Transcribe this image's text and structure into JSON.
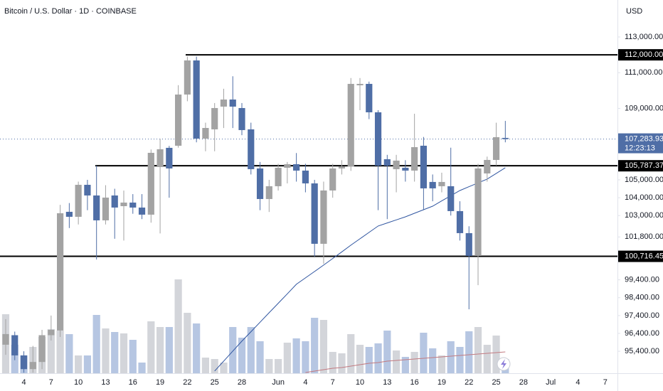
{
  "chart_data": {
    "type": "candlestick",
    "title": "Bitcoin / U.S. Dollar · 1D · COINBASE",
    "currency": "USD",
    "categories": [
      null,
      null,
      "4",
      null,
      null,
      "7",
      null,
      null,
      "10",
      null,
      null,
      "13",
      null,
      null,
      "16",
      null,
      null,
      "19",
      null,
      null,
      "22",
      null,
      null,
      "25",
      null,
      null,
      "28",
      null,
      null,
      null,
      "Jun",
      null,
      null,
      "4",
      null,
      null,
      "7",
      null,
      null,
      "10",
      null,
      null,
      "13",
      null,
      null,
      "16",
      null,
      null,
      "19",
      null,
      null,
      "22",
      null,
      null,
      "25",
      null,
      null,
      "28",
      null,
      null,
      "Jul",
      null,
      null,
      "4",
      null,
      null,
      "7",
      null
    ],
    "open": [
      95766,
      96300,
      95169,
      94400,
      94800,
      96300,
      96562,
      103209,
      102930,
      104721,
      104124,
      102731,
      104124,
      103526,
      103726,
      103447,
      103050,
      105716,
      106791,
      106910,
      109776,
      111686,
      107308,
      107826,
      109099,
      109497,
      109020,
      107826,
      105637,
      103925,
      104642,
      105677,
      105876,
      105517,
      104801,
      101418,
      104403,
      105637,
      105756,
      110293,
      110373,
      108781,
      106154,
      105597,
      105677,
      105517,
      106910,
      104881,
      104642,
      104642,
      103249,
      102015,
      100741,
      105358,
      106114,
      107348,
      null,
      null,
      null,
      null,
      null,
      null,
      null,
      null,
      null,
      null,
      null,
      null
    ],
    "high": [
      97200,
      96500,
      95400,
      95700,
      96600,
      97400,
      103600,
      103700,
      104900,
      105000,
      105796,
      104700,
      104500,
      104400,
      104200,
      104200,
      106700,
      107300,
      106900,
      110300,
      111900,
      111900,
      108200,
      109300,
      110100,
      110800,
      109300,
      108200,
      106000,
      105000,
      105900,
      106000,
      106500,
      105900,
      105000,
      104900,
      105900,
      106100,
      110700,
      110700,
      110500,
      108900,
      106400,
      106400,
      106100,
      108700,
      107400,
      105300,
      105400,
      106800,
      103800,
      102400,
      105900,
      106300,
      108200,
      108300,
      null,
      null,
      null,
      null,
      null,
      null,
      null,
      null,
      null,
      null,
      null,
      null
    ],
    "low": [
      95200,
      94900,
      94200,
      94200,
      94400,
      96000,
      96200,
      102300,
      102500,
      103300,
      100542,
      102500,
      101700,
      101600,
      103100,
      102800,
      102600,
      102000,
      104000,
      106800,
      109400,
      107100,
      106600,
      106600,
      107900,
      107900,
      107500,
      105300,
      103300,
      103200,
      104400,
      104800,
      104900,
      104300,
      100700,
      100300,
      104000,
      105300,
      105500,
      108900,
      108400,
      103300,
      102800,
      104300,
      104900,
      104900,
      103300,
      103800,
      104300,
      103000,
      101600,
      97750,
      99100,
      104900,
      105800,
      107100,
      null,
      null,
      null,
      null,
      null,
      null,
      null,
      null,
      null,
      null,
      null,
      null
    ],
    "close": [
      96363,
      95169,
      94400,
      94800,
      96300,
      96600,
      103129,
      102930,
      104721,
      104124,
      102731,
      104005,
      103448,
      103726,
      103447,
      103050,
      106512,
      106711,
      105637,
      109776,
      111686,
      107308,
      107905,
      109020,
      109497,
      109099,
      107786,
      105597,
      103925,
      104642,
      105677,
      105876,
      105517,
      104801,
      101418,
      104403,
      105637,
      105756,
      110373,
      110373,
      108781,
      105796,
      105796,
      106075,
      105517,
      106831,
      104522,
      104522,
      104881,
      103249,
      102015,
      100741,
      105637,
      106114,
      107388,
      107283.93,
      null,
      null,
      null,
      null,
      null,
      null,
      null,
      null,
      null,
      null,
      null,
      null
    ],
    "volume": [
      83,
      40,
      25,
      37,
      51,
      62,
      60,
      55,
      25,
      25,
      82,
      63,
      58,
      56,
      47,
      15,
      73,
      65,
      65,
      132,
      85,
      70,
      22,
      20,
      15,
      65,
      50,
      65,
      45,
      20,
      20,
      43,
      49,
      45,
      78,
      75,
      30,
      28,
      55,
      40,
      37,
      42,
      60,
      32,
      23,
      30,
      57,
      35,
      25,
      45,
      37,
      59,
      65,
      40,
      53,
      20,
      null,
      null,
      null,
      null,
      null,
      null,
      null,
      null,
      null,
      null,
      null,
      null
    ],
    "ma": [
      null,
      null,
      null,
      null,
      null,
      null,
      null,
      null,
      null,
      null,
      null,
      null,
      null,
      null,
      null,
      null,
      null,
      null,
      null,
      null,
      null,
      null,
      null,
      94294,
      94851,
      95408,
      95965,
      96496,
      97026,
      97557,
      98088,
      98618,
      99149,
      99507,
      99866,
      100224,
      100595,
      100967,
      101338,
      101696,
      102055,
      102413,
      102585,
      102758,
      102930,
      103129,
      103328,
      103527,
      103819,
      104111,
      104403,
      104615,
      104828,
      105040,
      105359,
      105677,
      null,
      null,
      null,
      null,
      null,
      null,
      null,
      null,
      null,
      null,
      null,
      null
    ],
    "volume_ma": [
      null,
      null,
      null,
      null,
      null,
      null,
      null,
      null,
      null,
      null,
      null,
      null,
      null,
      null,
      null,
      null,
      null,
      null,
      null,
      null,
      null,
      null,
      null,
      null,
      null,
      null,
      null,
      null,
      null,
      null,
      null,
      null,
      null,
      1,
      3,
      5,
      7,
      8,
      10,
      12,
      14,
      15,
      17,
      18,
      19,
      20,
      21,
      22,
      23,
      24,
      25,
      26,
      27,
      28,
      29,
      30,
      null,
      null,
      null,
      null,
      null,
      null,
      null,
      null,
      null,
      null,
      null,
      null
    ],
    "up_color": "#a3a3a3",
    "down_color": "#4f6ea6",
    "volume_up_color": "#d3d5da",
    "volume_down_color": "#b6c6e2",
    "ma_color": "#2f55a0",
    "volume_ma_color": "#c27a80",
    "ylim": [
      94170,
      115070
    ],
    "vlim": [
      0,
      300
    ],
    "yticks": [
      {
        "value": 113000,
        "label": "113,000.00"
      },
      {
        "value": 111000,
        "label": "111,000.00"
      },
      {
        "value": 109000,
        "label": "109,000.00"
      },
      {
        "value": 105000,
        "label": "105,000.00"
      },
      {
        "value": 104000,
        "label": "104,000.00"
      },
      {
        "value": 103000,
        "label": "103,000.00"
      },
      {
        "value": 101800,
        "label": "101,800.00"
      },
      {
        "value": 99400,
        "label": "99,400.00"
      },
      {
        "value": 98400,
        "label": "98,400.00"
      },
      {
        "value": 97400,
        "label": "97,400.00"
      },
      {
        "value": 96400,
        "label": "96,400.00"
      },
      {
        "value": 95400,
        "label": "95,400.00"
      }
    ],
    "levels": [
      {
        "value": 112000,
        "label": "112,000.00"
      },
      {
        "value": 105787.37,
        "label": "105,787.37"
      },
      {
        "value": 100716.45,
        "label": "100,716.45"
      }
    ],
    "last_price_label": "107,283.93",
    "countdown": "12:23:13"
  }
}
